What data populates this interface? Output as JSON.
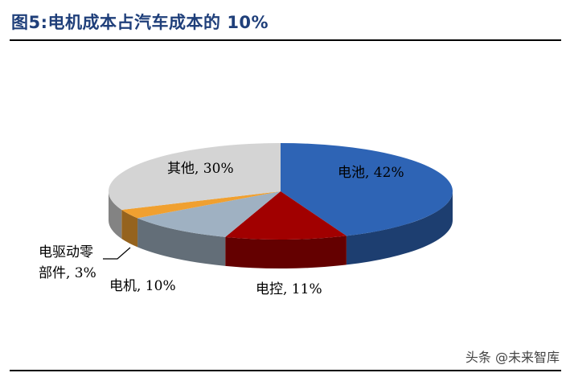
{
  "figure": {
    "title": "图5:电机成本占汽车成本的 10%"
  },
  "watermark": "头条 @未来智库",
  "chart_data": {
    "type": "pie",
    "style": "3d",
    "legend": "none",
    "slices": [
      {
        "name": "电池",
        "value": 42,
        "label": "电池, 42%",
        "color": "#2e64b5"
      },
      {
        "name": "电控",
        "value": 11,
        "label": "电控, 11%",
        "color": "#a10000"
      },
      {
        "name": "电机",
        "value": 10,
        "label": "电机, 10%",
        "color": "#9fb1c2"
      },
      {
        "name": "电驱动零部件",
        "value": 3,
        "label_lines": [
          "电驱动零",
          "部件, 3%"
        ],
        "color": "#f0a030"
      },
      {
        "name": "其他",
        "value": 30,
        "label": "其他, 30%",
        "color": "#d4d4d4"
      }
    ]
  }
}
